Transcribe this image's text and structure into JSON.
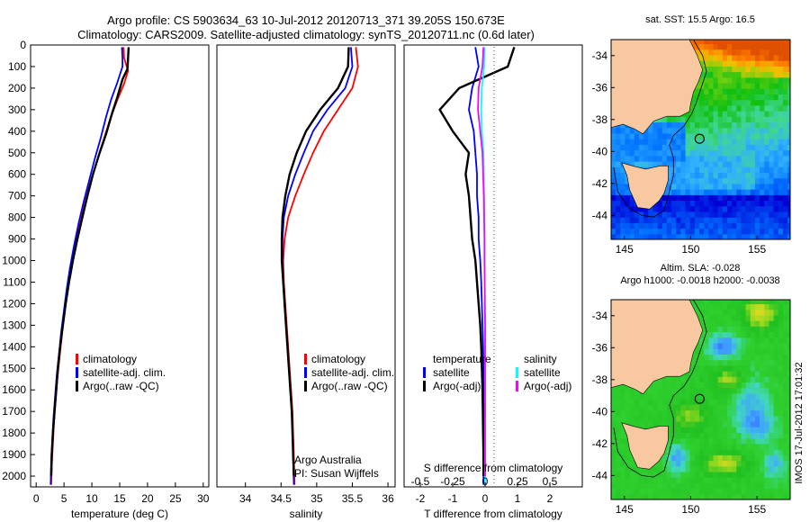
{
  "title": {
    "line1": "Argo profile: CS 5903634_63 10-Jul-2012 20120713_371 39.205S 150.673E",
    "line2": "Climatology: CARS2009. Satellite-adjusted climatology: synTS_20120711.nc (0.6d later)"
  },
  "colors": {
    "climatology": "#ff0000",
    "satellite": "#0000ff",
    "argo": "#000000",
    "salinity_satellite": "#00ffff",
    "salinity_argo": "#ff00ff",
    "land": "#f8c8a0"
  },
  "chart_data": [
    {
      "type": "line",
      "name": "temperature",
      "xlabel": "temperature (deg C)",
      "xlim": [
        -1,
        31
      ],
      "xticks": [
        0,
        5,
        10,
        15,
        20,
        25,
        30
      ],
      "ylim": [
        2050,
        0
      ],
      "yticks": [
        0,
        100,
        200,
        300,
        400,
        500,
        600,
        700,
        800,
        900,
        1000,
        1100,
        1200,
        1300,
        1400,
        1500,
        1600,
        1700,
        1800,
        1900,
        2000
      ],
      "legend": {
        "position": "lower-center",
        "entries": [
          "climatology",
          "satellite-adj. clim.",
          "Argo(..raw -QC)"
        ]
      },
      "series": [
        {
          "name": "climatology",
          "color": "#ff0000",
          "points": [
            [
              15.7,
              10
            ],
            [
              15.8,
              60
            ],
            [
              16.5,
              120
            ],
            [
              15.8,
              180
            ],
            [
              14.5,
              260
            ],
            [
              13.2,
              350
            ],
            [
              12.0,
              450
            ],
            [
              10.8,
              550
            ],
            [
              9.6,
              650
            ],
            [
              8.6,
              750
            ],
            [
              7.7,
              850
            ],
            [
              6.9,
              950
            ],
            [
              6.2,
              1050
            ],
            [
              5.6,
              1150
            ],
            [
              5.0,
              1250
            ],
            [
              4.6,
              1350
            ],
            [
              4.2,
              1450
            ],
            [
              3.8,
              1550
            ],
            [
              3.5,
              1650
            ],
            [
              3.2,
              1750
            ],
            [
              3.0,
              1850
            ],
            [
              2.8,
              1950
            ],
            [
              2.7,
              2040
            ]
          ]
        },
        {
          "name": "satellite-adj. clim.",
          "color": "#0000ff",
          "points": [
            [
              15.4,
              10
            ],
            [
              15.5,
              60
            ],
            [
              15.5,
              100
            ],
            [
              14.5,
              180
            ],
            [
              13.5,
              250
            ],
            [
              12.6,
              330
            ],
            [
              11.6,
              430
            ],
            [
              10.5,
              530
            ],
            [
              9.5,
              630
            ],
            [
              8.5,
              730
            ],
            [
              7.6,
              830
            ],
            [
              6.8,
              930
            ],
            [
              6.1,
              1030
            ],
            [
              5.5,
              1130
            ],
            [
              5.0,
              1230
            ],
            [
              4.5,
              1330
            ],
            [
              4.1,
              1430
            ],
            [
              3.7,
              1530
            ],
            [
              3.4,
              1630
            ],
            [
              3.1,
              1730
            ],
            [
              2.9,
              1830
            ],
            [
              2.7,
              1930
            ],
            [
              2.6,
              2040
            ]
          ]
        },
        {
          "name": "Argo(..raw -QC)",
          "color": "#000000",
          "points": [
            [
              16.6,
              10
            ],
            [
              16.5,
              60
            ],
            [
              16.4,
              110
            ],
            [
              15.5,
              160
            ],
            [
              14.6,
              240
            ],
            [
              13.6,
              320
            ],
            [
              12.6,
              410
            ],
            [
              11.4,
              500
            ],
            [
              10.2,
              600
            ],
            [
              9.2,
              700
            ],
            [
              8.3,
              800
            ],
            [
              7.4,
              900
            ],
            [
              6.6,
              1000
            ],
            [
              5.9,
              1100
            ],
            [
              5.3,
              1200
            ],
            [
              4.8,
              1300
            ],
            [
              4.3,
              1400
            ],
            [
              3.9,
              1500
            ],
            [
              3.6,
              1600
            ],
            [
              3.3,
              1700
            ],
            [
              3.0,
              1800
            ],
            [
              2.8,
              1900
            ],
            [
              2.7,
              2000
            ]
          ]
        }
      ]
    },
    {
      "type": "line",
      "name": "salinity",
      "xlabel": "salinity",
      "xlim": [
        33.6,
        36.1
      ],
      "xticks": [
        34,
        34.5,
        35,
        35.5,
        36
      ],
      "ylim": [
        2050,
        0
      ],
      "legend": {
        "position": "lower-center",
        "entries": [
          "climatology",
          "satellite-adj. clim.",
          "Argo(..raw -QC)"
        ]
      },
      "annotation": [
        "Argo Australia",
        "PI: Susan Wijffels"
      ],
      "series": [
        {
          "name": "climatology",
          "color": "#ff0000",
          "points": [
            [
              35.55,
              10
            ],
            [
              35.58,
              100
            ],
            [
              35.5,
              200
            ],
            [
              35.3,
              300
            ],
            [
              35.1,
              400
            ],
            [
              34.95,
              500
            ],
            [
              34.82,
              600
            ],
            [
              34.7,
              700
            ],
            [
              34.6,
              800
            ],
            [
              34.55,
              900
            ],
            [
              34.53,
              1000
            ],
            [
              34.54,
              1100
            ],
            [
              34.56,
              1200
            ],
            [
              34.58,
              1300
            ],
            [
              34.6,
              1400
            ],
            [
              34.62,
              1500
            ],
            [
              34.64,
              1600
            ],
            [
              34.66,
              1700
            ],
            [
              34.67,
              1800
            ],
            [
              34.68,
              1900
            ],
            [
              34.69,
              2040
            ]
          ]
        },
        {
          "name": "satellite-adj. clim.",
          "color": "#0000ff",
          "points": [
            [
              35.48,
              10
            ],
            [
              35.5,
              100
            ],
            [
              35.4,
              200
            ],
            [
              35.15,
              300
            ],
            [
              34.95,
              400
            ],
            [
              34.82,
              500
            ],
            [
              34.7,
              600
            ],
            [
              34.6,
              700
            ],
            [
              34.54,
              800
            ],
            [
              34.52,
              900
            ],
            [
              34.52,
              1000
            ],
            [
              34.53,
              1100
            ],
            [
              34.55,
              1200
            ],
            [
              34.57,
              1300
            ],
            [
              34.59,
              1400
            ],
            [
              34.61,
              1500
            ],
            [
              34.63,
              1600
            ],
            [
              34.65,
              1700
            ],
            [
              34.66,
              1800
            ],
            [
              34.67,
              1900
            ],
            [
              34.68,
              2040
            ]
          ]
        },
        {
          "name": "Argo(..raw -QC)",
          "color": "#000000",
          "points": [
            [
              35.45,
              10
            ],
            [
              35.44,
              100
            ],
            [
              35.3,
              200
            ],
            [
              35.05,
              300
            ],
            [
              34.85,
              400
            ],
            [
              34.72,
              500
            ],
            [
              34.62,
              600
            ],
            [
              34.56,
              700
            ],
            [
              34.52,
              800
            ],
            [
              34.51,
              900
            ],
            [
              34.51,
              1000
            ],
            [
              34.53,
              1100
            ],
            [
              34.55,
              1200
            ],
            [
              34.57,
              1300
            ],
            [
              34.59,
              1400
            ],
            [
              34.61,
              1500
            ],
            [
              34.63,
              1600
            ],
            [
              34.65,
              1700
            ],
            [
              34.66,
              1800
            ],
            [
              34.67,
              1900
            ],
            [
              34.68,
              2000
            ]
          ]
        }
      ]
    },
    {
      "type": "line",
      "name": "difference from climatology",
      "xlabel": "T difference from climatology",
      "xlabel_top": "S difference from climatology",
      "xlim": [
        -2.5,
        3
      ],
      "xticks": [
        -2,
        -1,
        0,
        1,
        2
      ],
      "xticks_top": [
        -0.5,
        -0.25,
        0,
        0.25,
        0.5
      ],
      "ylim": [
        2050,
        0
      ],
      "legend": {
        "position": "lower-center",
        "temperature_header": "temperature",
        "salinity_header": "salinity",
        "temperature_entries": [
          "satellite",
          "Argo(-adj)"
        ],
        "salinity_entries": [
          "satellite",
          "Argo(-adj)"
        ]
      },
      "series": [
        {
          "name": "temperature satellite",
          "color": "#0000ff",
          "points": [
            [
              -0.3,
              10
            ],
            [
              -0.2,
              100
            ],
            [
              -0.4,
              200
            ],
            [
              -0.5,
              300
            ],
            [
              -0.35,
              400
            ],
            [
              -0.3,
              500
            ],
            [
              -0.25,
              600
            ],
            [
              -0.25,
              700
            ],
            [
              -0.2,
              800
            ],
            [
              -0.2,
              900
            ],
            [
              -0.15,
              1000
            ],
            [
              -0.12,
              1100
            ],
            [
              -0.1,
              1200
            ],
            [
              -0.08,
              1300
            ],
            [
              -0.06,
              1400
            ],
            [
              -0.05,
              1500
            ],
            [
              -0.05,
              1600
            ],
            [
              -0.05,
              1700
            ],
            [
              -0.05,
              1800
            ],
            [
              -0.05,
              1900
            ],
            [
              -0.05,
              2040
            ]
          ]
        },
        {
          "name": "temperature Argo(-adj)",
          "color": "#000000",
          "points": [
            [
              0.9,
              10
            ],
            [
              0.7,
              100
            ],
            [
              -0.8,
              200
            ],
            [
              -1.4,
              300
            ],
            [
              -1.0,
              400
            ],
            [
              -0.5,
              500
            ],
            [
              -0.6,
              600
            ],
            [
              -0.5,
              700
            ],
            [
              -0.45,
              800
            ],
            [
              -0.4,
              900
            ],
            [
              -0.3,
              1000
            ],
            [
              -0.25,
              1100
            ],
            [
              -0.2,
              1200
            ],
            [
              -0.15,
              1300
            ],
            [
              -0.12,
              1400
            ],
            [
              -0.1,
              1500
            ],
            [
              -0.08,
              1600
            ],
            [
              -0.07,
              1700
            ],
            [
              -0.06,
              1800
            ],
            [
              -0.05,
              1900
            ],
            [
              -0.05,
              2000
            ]
          ]
        },
        {
          "name": "salinity satellite",
          "color": "#00ffff",
          "points": [
            [
              -0.02,
              10
            ],
            [
              -0.03,
              100
            ],
            [
              -0.1,
              200
            ],
            [
              -0.12,
              300
            ],
            [
              -0.1,
              400
            ],
            [
              -0.05,
              500
            ],
            [
              -0.04,
              600
            ],
            [
              -0.03,
              700
            ],
            [
              -0.02,
              800
            ],
            [
              -0.01,
              900
            ],
            [
              -0.01,
              1000
            ],
            [
              -0.01,
              1100
            ],
            [
              0,
              1200
            ],
            [
              0,
              1300
            ],
            [
              0,
              1400
            ],
            [
              0,
              1500
            ],
            [
              0,
              1600
            ],
            [
              0,
              1700
            ],
            [
              0,
              1800
            ],
            [
              0,
              1900
            ],
            [
              0,
              2040
            ]
          ]
        },
        {
          "name": "salinity Argo(-adj)",
          "color": "#ff00ff",
          "points": [
            [
              -0.05,
              10
            ],
            [
              -0.08,
              100
            ],
            [
              -0.2,
              200
            ],
            [
              -0.22,
              300
            ],
            [
              -0.15,
              400
            ],
            [
              -0.08,
              500
            ],
            [
              -0.06,
              600
            ],
            [
              -0.04,
              700
            ],
            [
              -0.03,
              800
            ],
            [
              -0.02,
              900
            ],
            [
              -0.02,
              1000
            ],
            [
              -0.01,
              1100
            ],
            [
              -0.01,
              1200
            ],
            [
              0,
              1300
            ],
            [
              0,
              1400
            ],
            [
              0,
              1500
            ],
            [
              0,
              1600
            ],
            [
              0,
              1700
            ],
            [
              0,
              1800
            ],
            [
              0,
              1900
            ],
            [
              0,
              2000
            ]
          ]
        }
      ]
    },
    {
      "type": "heatmap",
      "name": "sst map",
      "title": "sat. SST: 15.5  Argo: 16.5",
      "xlim": [
        144,
        157.5
      ],
      "ylim": [
        -45.5,
        -33
      ],
      "xticks": [
        145,
        150,
        155
      ],
      "yticks": [
        -34,
        -36,
        -38,
        -40,
        -42,
        -44
      ],
      "float_location": {
        "lon": 150.673,
        "lat": -39.205
      }
    },
    {
      "type": "heatmap",
      "name": "sla map",
      "title_line1": "Altim. SLA: -0.028",
      "title_line2": "Argo h1000: -0.0018 h2000: -0.0038",
      "xlim": [
        144,
        157.5
      ],
      "ylim": [
        -45.5,
        -33
      ],
      "xticks": [
        145,
        150,
        155
      ],
      "yticks": [
        -34,
        -36,
        -38,
        -40,
        -42,
        -44
      ],
      "float_location": {
        "lon": 150.673,
        "lat": -39.205
      }
    }
  ],
  "footer_stamp": "IMOS 17-Jul-2012 17:01:32"
}
